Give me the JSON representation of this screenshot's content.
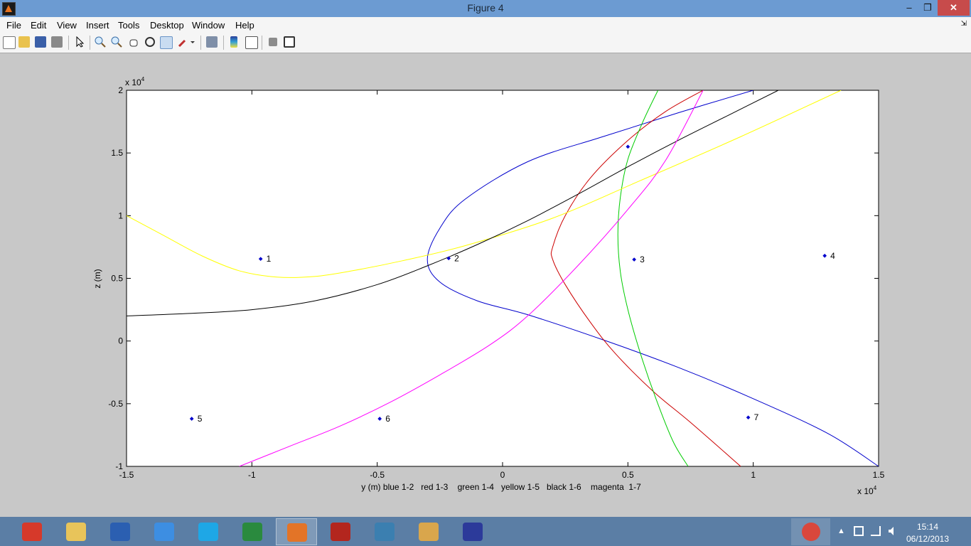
{
  "window": {
    "title": "Figure 4",
    "min_glyph": "–",
    "max_glyph": "❐",
    "close_glyph": "✕"
  },
  "menu": [
    "File",
    "Edit",
    "View",
    "Insert",
    "Tools",
    "Desktop",
    "Window",
    "Help"
  ],
  "menu_arrow": "⇲",
  "toolbar": [
    "new-figure-icon",
    "open-file-icon",
    "save-icon",
    "print-icon",
    "pointer-icon",
    "zoom-in-icon",
    "zoom-out-icon",
    "pan-hand-icon",
    "rotate-3d-icon",
    "data-cursor-icon",
    "brush-icon",
    "link-plot-icon",
    "colorbar-icon",
    "legend-icon",
    "hide-plot-tools-icon",
    "show-plot-tools-icon"
  ],
  "chart_data": {
    "type": "line",
    "title": "",
    "xlabel": "y (m) blue 1-2   red 1-3    green 1-4   yellow 1-5   black 1-6    magenta  1-7",
    "ylabel": "z (m)",
    "x_exponent_label": "x 10",
    "y_exponent_label": "x 10",
    "exponent": "4",
    "xlim": [
      -15000,
      15000
    ],
    "ylim": [
      -10000,
      20000
    ],
    "xticks": [
      -15000,
      -10000,
      -5000,
      0,
      5000,
      10000,
      15000
    ],
    "xtick_labels": [
      "-1.5",
      "-1",
      "-0.5",
      "0",
      "0.5",
      "1",
      "1.5"
    ],
    "yticks": [
      -10000,
      -5000,
      0,
      5000,
      10000,
      15000,
      20000
    ],
    "ytick_labels": [
      "-1",
      "-0.5",
      "0",
      "0.5",
      "1",
      "1.5",
      "2"
    ],
    "grid": false,
    "points": [
      {
        "label": "1",
        "x": -9650,
        "y": 6550
      },
      {
        "label": "2",
        "x": -2150,
        "y": 6600
      },
      {
        "label": "3",
        "x": 5250,
        "y": 6500
      },
      {
        "label": "4",
        "x": 12850,
        "y": 6800
      },
      {
        "label": "5",
        "x": -12400,
        "y": -6200
      },
      {
        "label": "6",
        "x": -4900,
        "y": -6200
      },
      {
        "label": "7",
        "x": 9800,
        "y": -6100
      },
      {
        "label": "",
        "x": 5000,
        "y": 15500
      }
    ],
    "series": [
      {
        "color": "#0000cc",
        "x": [
          10000,
          7000,
          4000,
          1000,
          -1500,
          -2500,
          -3000,
          -2500,
          -1000,
          1000,
          4000,
          7000,
          10000,
          13000,
          15000
        ],
        "y": [
          20000,
          18200,
          16300,
          14300,
          11300,
          9000,
          6500,
          4700,
          3200,
          2100,
          100,
          -2100,
          -4600,
          -7400,
          -10000
        ]
      },
      {
        "color": "#cc0000",
        "x": [
          8000,
          6500,
          5000,
          3500,
          2500,
          2000,
          2000,
          2500,
          3500,
          4500,
          6000,
          7500,
          9500
        ],
        "y": [
          20000,
          18300,
          16000,
          13000,
          10000,
          7500,
          6500,
          4500,
          1500,
          -1000,
          -4000,
          -6500,
          -10000
        ]
      },
      {
        "color": "#00cc00",
        "x": [
          6200,
          5600,
          5000,
          4700,
          4600,
          4700,
          5000,
          5500,
          6100,
          6800,
          7400
        ],
        "y": [
          20000,
          17500,
          14500,
          11500,
          8500,
          5500,
          2500,
          -1000,
          -4500,
          -8000,
          -10000
        ]
      },
      {
        "color": "#ffff00",
        "x": [
          -15000,
          -13500,
          -12000,
          -10500,
          -9000,
          -7500,
          -6000,
          -4000,
          -1500,
          2000,
          5500,
          9500,
          13500
        ],
        "y": [
          10000,
          8400,
          6800,
          5600,
          5100,
          5150,
          5600,
          6400,
          7600,
          9800,
          12800,
          16300,
          20000
        ]
      },
      {
        "color": "#000000",
        "x": [
          -15000,
          -12500,
          -10000,
          -7500,
          -5000,
          -3000,
          -1000,
          1000,
          3000,
          5000,
          7000,
          9000,
          11000
        ],
        "y": [
          2000,
          2200,
          2500,
          3200,
          4500,
          6000,
          7700,
          9600,
          11700,
          13900,
          16000,
          18000,
          20000
        ]
      },
      {
        "color": "#ff00ff",
        "x": [
          -10500,
          -8500,
          -6500,
          -4500,
          -2500,
          -500,
          1000,
          3000,
          5000,
          6500,
          8000
        ],
        "y": [
          -10000,
          -8400,
          -6800,
          -4900,
          -2700,
          -300,
          2000,
          6000,
          10500,
          14400,
          20000
        ]
      }
    ]
  },
  "taskbar": {
    "apps": [
      {
        "icon": "chrome-icon",
        "color": "#d6392a"
      },
      {
        "icon": "file-explorer-icon",
        "color": "#e8c45a"
      },
      {
        "icon": "word-icon",
        "color": "#2b5fb1"
      },
      {
        "icon": "dropbox-icon",
        "color": "#3d8ee2"
      },
      {
        "icon": "skype-icon",
        "color": "#1ea7e6"
      },
      {
        "icon": "excel-icon",
        "color": "#2a8a3e"
      },
      {
        "icon": "matlab-icon",
        "color": "#e37427"
      },
      {
        "icon": "acrobat-icon",
        "color": "#b3261e"
      },
      {
        "icon": "photo-viewer-icon",
        "color": "#3b7fb0"
      },
      {
        "icon": "paint-icon",
        "color": "#d9a64c"
      },
      {
        "icon": "audacity-icon",
        "color": "#2c3a9a"
      }
    ],
    "active_index": 6,
    "tray_up": "▲",
    "clock_time": "15:14",
    "clock_date": "06/12/2013"
  }
}
